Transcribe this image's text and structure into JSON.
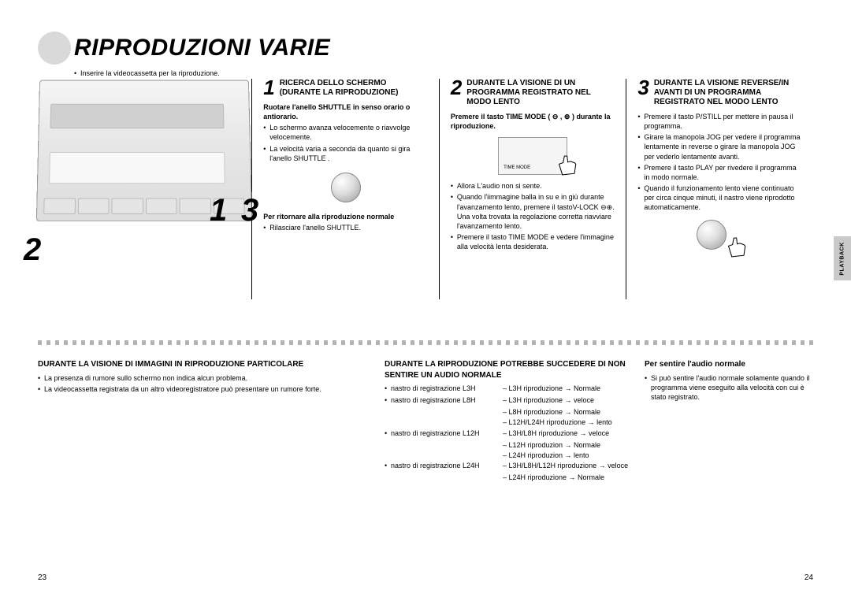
{
  "title": "RIPRODUZIONI VARIE",
  "intro": "Inserire la videocassetta per la riproduzione.",
  "device_numbers": {
    "n1": "1",
    "n2": "2",
    "n3": "3"
  },
  "step1": {
    "num": "1",
    "title": "RICERCA DELLO SCHERMO (DURANTE LA RIPRODUZIONE)",
    "bold1": "Ruotare l'anello SHUTTLE in senso orario o antiorario.",
    "b1": "Lo schermo avanza velocemente o riavvolge velocemente.",
    "b2": "La velocità varia a seconda da quanto si gira l'anello SHUTTLE .",
    "bold2": "Per ritornare alla riproduzione normale",
    "b3": "Rilasciare l'anello SHUTTLE."
  },
  "step2": {
    "num": "2",
    "title": "DURANTE LA VISIONE DI UN PROGRAMMA REGISTRATO NEL MODO LENTO",
    "bold1": "Premere il tasto TIME MODE ( ⊖ , ⊕ ) durante la riproduzione.",
    "remote_label": "TIME MODE",
    "b1": "Allora L'audio non si sente.",
    "b2": "Quando l'iimmagine balla in su e in giù durante l'avanzamento lento, premere il tastoV-LOCK ⊖⊕. Una volta trovata la regolazione corretta riavviare l'avanzamento lento.",
    "b3": "Premere il tasto TIME MODE e vedere l'immagine alla velocità lenta desiderata."
  },
  "step3": {
    "num": "3",
    "title": "DURANTE LA VISIONE REVERSE/IN AVANTI DI UN PROGRAMMA REGISTRATO NEL MODO LENTO",
    "b1": "Premere il tasto P/STILL per mettere in pausa il programma.",
    "b2": "Girare la manopola JOG per vedere il programma lentamente in reverse o girare la manopola JOG per vederlo lentamente avanti.",
    "b3": "Premere il tasto PLAY per rivedere il programma in modo normale.",
    "b4": "Quando il funzionamento lento viene continuato per circa cinque minuti, il nastro viene riprodotto automaticamente."
  },
  "side_tab": "PLAYBACK",
  "bottom1": {
    "title": "DURANTE LA VISIONE DI IMMAGINI IN RIPRODUZIONE PARTICOLARE",
    "b1": "La presenza di rumore sullo schermo non indica alcun problema.",
    "b2": "La videocassetta registrata da un altro videoregistratore può presentare un rumore forte."
  },
  "bottom2": {
    "title": "DURANTE LA RIPRODUZIONE POTREBBE SUCCEDERE DI NON SENTIRE UN AUDIO NORMALE",
    "rows": [
      {
        "label": "nastro di registrazione L3H",
        "lines": [
          "– L3H riproduzione → Normale"
        ]
      },
      {
        "label": "nastro di registrazione L8H",
        "lines": [
          "– L3H riproduzione → veloce",
          "– L8H riproduzione → Normale",
          "– L12H/L24H riproduzione → lento"
        ]
      },
      {
        "label": "nastro di registrazione L12H",
        "lines": [
          "– L3H/L8H riproduzione → veloce",
          "– L12H riproduzion → Normale",
          "– L24H riproduzion → lento"
        ]
      },
      {
        "label": "nastro di registrazione L24H",
        "lines": [
          "– L3H/L8H/L12H riproduzione → veloce",
          "– L24H riproduzione → Normale"
        ]
      }
    ]
  },
  "bottom3": {
    "title": "Per sentire l'audio normale",
    "b1": "Si può sentire l'audio normale solamente quando il programma viene eseguito alla velocità con cui è stato registrato."
  },
  "page_left": "23",
  "page_right": "24"
}
